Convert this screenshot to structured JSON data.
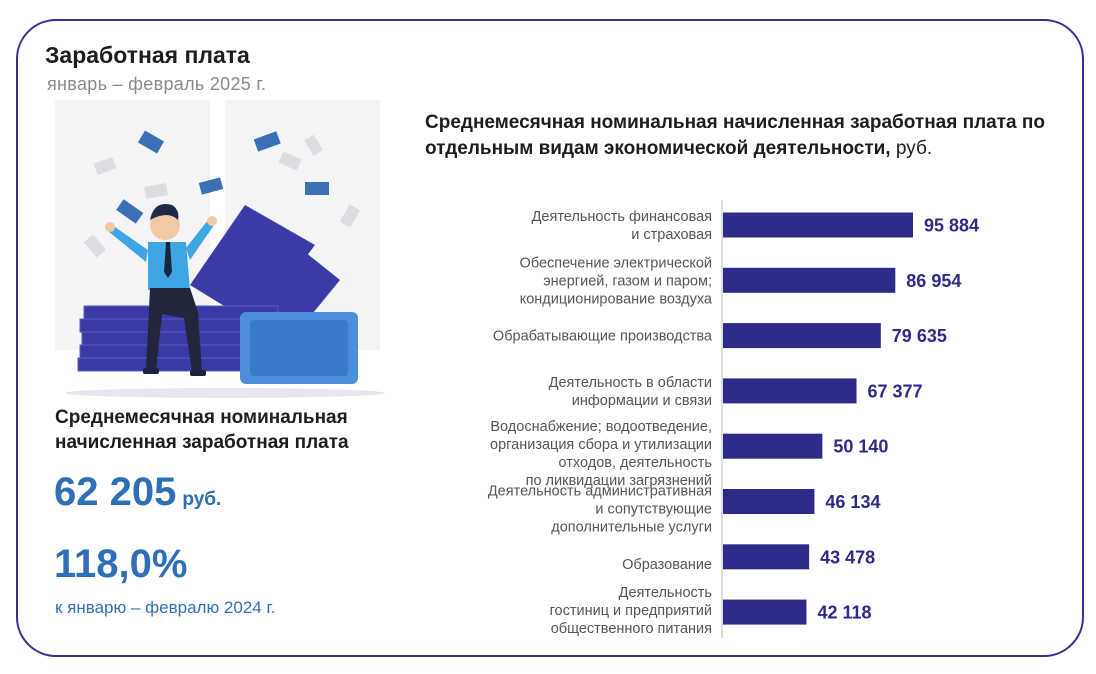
{
  "header": {
    "title": "Заработная плата",
    "period": "январь – февраль 2025 г."
  },
  "kpi": {
    "label": "Среднемесячная номинальная начисленная заработная плата",
    "value": "62 205",
    "unit": "руб.",
    "percent": "118,0%",
    "percent_note": "к январю – февралю 2024 г."
  },
  "chart_title": {
    "main": "Среднемесячная номинальная начисленная заработная плата по отдельным видам экономической деятельности,",
    "unit": "руб."
  },
  "colors": {
    "bar": "#2e2a8a",
    "accent": "#2f6fb7",
    "border": "#3c2f92"
  },
  "chart_data": {
    "type": "bar",
    "orientation": "horizontal",
    "title": "Среднемесячная номинальная начисленная заработная плата по отдельным видам экономической деятельности, руб.",
    "categories": [
      [
        "Деятельность финансовая",
        "и страховая"
      ],
      [
        "Обеспечение электрической",
        "энергией, газом и паром;",
        "кондиционирование воздуха"
      ],
      [
        "Обрабатывающие производства"
      ],
      [
        "Деятельность в области",
        "информации и связи"
      ],
      [
        "Водоснабжение; водоотведение,",
        "организация сбора и утилизации",
        "отходов, деятельность",
        "по ликвидации загрязнений"
      ],
      [
        "Деятельность административная",
        "и сопутствующие",
        "дополнительные услуги"
      ],
      [
        "Образование"
      ],
      [
        "Деятельность",
        "гостиниц и предприятий",
        "общественного питания"
      ]
    ],
    "values": [
      95884,
      86954,
      79635,
      67377,
      50140,
      46134,
      43478,
      42118
    ],
    "labels": [
      "95 884",
      "86 954",
      "79 635",
      "67 377",
      "50 140",
      "46 134",
      "43 478",
      "42 118"
    ],
    "xlim": [
      0,
      95884
    ]
  }
}
